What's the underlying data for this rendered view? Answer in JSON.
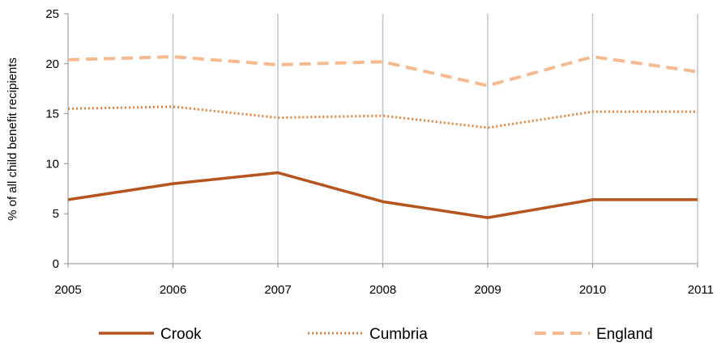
{
  "chart_data": {
    "type": "line",
    "title": "",
    "xlabel": "",
    "ylabel": "% of all child benefit recipients",
    "x": [
      "2005",
      "2006",
      "2007",
      "2008",
      "2009",
      "2010",
      "2011"
    ],
    "ylim": [
      0,
      25
    ],
    "yticks": [
      "0",
      "5",
      "10",
      "15",
      "20",
      "25"
    ],
    "grid": "vertical",
    "legend_position": "bottom",
    "series": [
      {
        "name": "Crook",
        "values": [
          6.4,
          8.0,
          9.1,
          6.2,
          4.6,
          6.4,
          6.4
        ],
        "color": "#b5541d",
        "style": "solid"
      },
      {
        "name": "Cumbria",
        "values": [
          15.5,
          15.7,
          14.6,
          14.8,
          13.6,
          15.2,
          15.2
        ],
        "color": "#e8823a",
        "style": "dotted"
      },
      {
        "name": "England",
        "values": [
          20.4,
          20.7,
          19.9,
          20.2,
          17.8,
          20.7,
          19.2
        ],
        "color": "#f7b98d",
        "style": "dashed"
      }
    ]
  }
}
